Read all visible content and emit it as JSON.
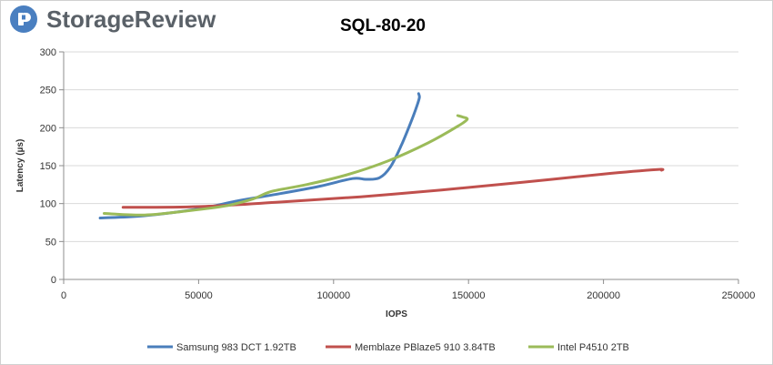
{
  "brand": {
    "name": "StorageReview",
    "icon": "storagereview-logo-icon",
    "color": "#4a7fc0"
  },
  "chart_data": {
    "type": "line",
    "title": "SQL-80-20",
    "xlabel": "IOPS",
    "ylabel": "Latency (µs)",
    "xlim": [
      0,
      250000
    ],
    "ylim": [
      0,
      300
    ],
    "x_ticks": [
      0,
      50000,
      100000,
      150000,
      200000,
      250000
    ],
    "y_ticks": [
      0,
      50,
      100,
      150,
      200,
      250,
      300
    ],
    "grid": "horizontal",
    "legend_position": "bottom",
    "series": [
      {
        "name": "Samsung 983 DCT 1.92TB",
        "color": "#4a7ebb",
        "points": [
          [
            13500,
            81
          ],
          [
            30000,
            84
          ],
          [
            50000,
            93
          ],
          [
            65000,
            104
          ],
          [
            80000,
            113
          ],
          [
            95000,
            123
          ],
          [
            107000,
            133
          ],
          [
            112000,
            132
          ],
          [
            117000,
            134
          ],
          [
            121000,
            148
          ],
          [
            125000,
            176
          ],
          [
            128500,
            206
          ],
          [
            131000,
            230
          ],
          [
            131800,
            240
          ],
          [
            131500,
            245
          ]
        ]
      },
      {
        "name": "Memblaze PBlaze5 910 3.84TB",
        "color": "#c0504d",
        "points": [
          [
            22000,
            95
          ],
          [
            50000,
            96
          ],
          [
            80000,
            102
          ],
          [
            110000,
            109
          ],
          [
            140000,
            118
          ],
          [
            170000,
            128
          ],
          [
            200000,
            139
          ],
          [
            220000,
            145
          ],
          [
            221500,
            144
          ]
        ]
      },
      {
        "name": "Intel P4510 2TB",
        "color": "#9bbb59",
        "points": [
          [
            15000,
            87
          ],
          [
            30000,
            85
          ],
          [
            45000,
            90
          ],
          [
            60000,
            97
          ],
          [
            70000,
            106
          ],
          [
            77000,
            116
          ],
          [
            90000,
            125
          ],
          [
            105000,
            138
          ],
          [
            120000,
            156
          ],
          [
            135000,
            180
          ],
          [
            146000,
            202
          ],
          [
            149500,
            211
          ],
          [
            148000,
            214
          ],
          [
            146000,
            216
          ]
        ]
      }
    ]
  }
}
